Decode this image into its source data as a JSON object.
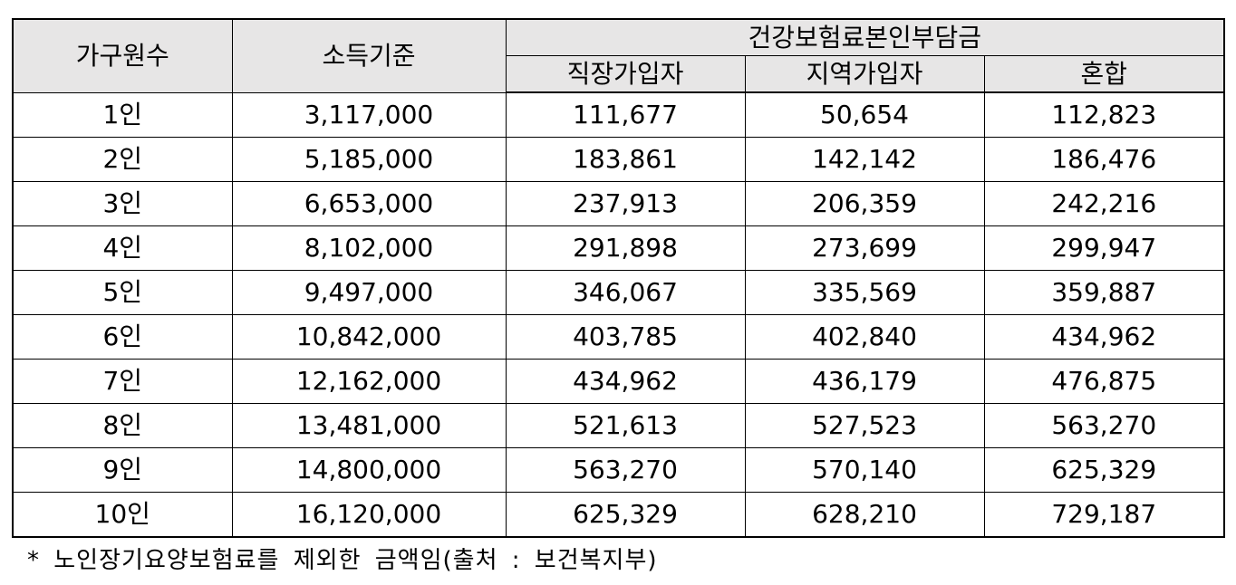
{
  "table": {
    "headers": {
      "household": "가구원수",
      "income": "소득기준",
      "premium_group": "건강보험료본인부담금",
      "workplace": "직장가입자",
      "regional": "지역가입자",
      "mixed": "혼합"
    },
    "rows": [
      {
        "household": "1인",
        "income": "3,117,000",
        "workplace": "111,677",
        "regional": "50,654",
        "mixed": "112,823"
      },
      {
        "household": "2인",
        "income": "5,185,000",
        "workplace": "183,861",
        "regional": "142,142",
        "mixed": "186,476"
      },
      {
        "household": "3인",
        "income": "6,653,000",
        "workplace": "237,913",
        "regional": "206,359",
        "mixed": "242,216"
      },
      {
        "household": "4인",
        "income": "8,102,000",
        "workplace": "291,898",
        "regional": "273,699",
        "mixed": "299,947"
      },
      {
        "household": "5인",
        "income": "9,497,000",
        "workplace": "346,067",
        "regional": "335,569",
        "mixed": "359,887"
      },
      {
        "household": "6인",
        "income": "10,842,000",
        "workplace": "403,785",
        "regional": "402,840",
        "mixed": "434,962"
      },
      {
        "household": "7인",
        "income": "12,162,000",
        "workplace": "434,962",
        "regional": "436,179",
        "mixed": "476,875"
      },
      {
        "household": "8인",
        "income": "13,481,000",
        "workplace": "521,613",
        "regional": "527,523",
        "mixed": "563,270"
      },
      {
        "household": "9인",
        "income": "14,800,000",
        "workplace": "563,270",
        "regional": "570,140",
        "mixed": "625,329"
      },
      {
        "household": "10인",
        "income": "16,120,000",
        "workplace": "625,329",
        "regional": "628,210",
        "mixed": "729,187"
      }
    ]
  },
  "footnote": "*  노인장기요양보험료를 제외한 금액임(출처 : 보건복지부)"
}
